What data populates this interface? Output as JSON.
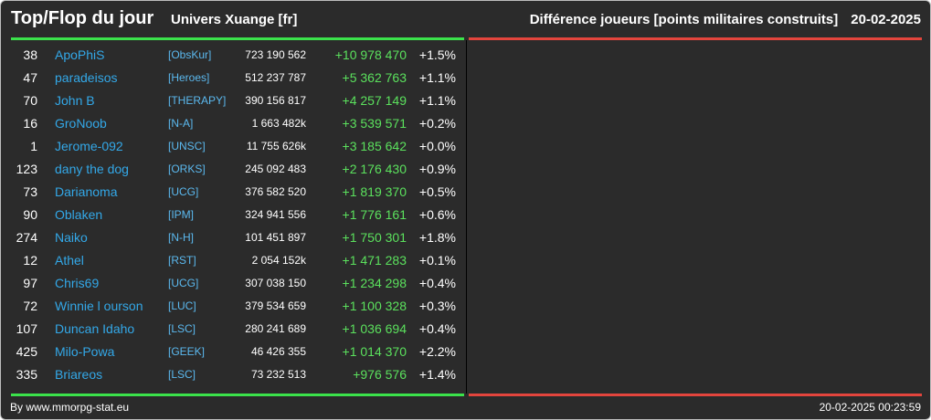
{
  "header": {
    "title": "Top/Flop du jour",
    "universe": "Univers Xuange [fr]",
    "subtitle": "Différence joueurs [points militaires construits]",
    "date": "20-02-2025"
  },
  "colors": {
    "background": "#2b2b2b",
    "top_line": "#3be24b",
    "flop_line": "#e3453d",
    "player_name": "#33a8e8",
    "alliance": "#5bb9ef",
    "positive_diff": "#5be15d"
  },
  "rows": [
    {
      "rank": "38",
      "name": "ApoPhiS",
      "alliance": "[ObsKur]",
      "points": "723 190 562",
      "diff": "+10 978 470",
      "pct": "+1.5%"
    },
    {
      "rank": "47",
      "name": "paradeisos",
      "alliance": "[Heroes]",
      "points": "512 237 787",
      "diff": "+5 362 763",
      "pct": "+1.1%"
    },
    {
      "rank": "70",
      "name": "John B",
      "alliance": "[THERAPY]",
      "points": "390 156 817",
      "diff": "+4 257 149",
      "pct": "+1.1%"
    },
    {
      "rank": "16",
      "name": "GroNoob",
      "alliance": "[N-A]",
      "points": "1 663 482k",
      "diff": "+3 539 571",
      "pct": "+0.2%"
    },
    {
      "rank": "1",
      "name": "Jerome-092",
      "alliance": "[UNSC]",
      "points": "11 755 626k",
      "diff": "+3 185 642",
      "pct": "+0.0%"
    },
    {
      "rank": "123",
      "name": "dany the dog",
      "alliance": "[ORKS]",
      "points": "245 092 483",
      "diff": "+2 176 430",
      "pct": "+0.9%"
    },
    {
      "rank": "73",
      "name": "Darianoma",
      "alliance": "[UCG]",
      "points": "376 582 520",
      "diff": "+1 819 370",
      "pct": "+0.5%"
    },
    {
      "rank": "90",
      "name": "Oblaken",
      "alliance": "[IPM]",
      "points": "324 941 556",
      "diff": "+1 776 161",
      "pct": "+0.6%"
    },
    {
      "rank": "274",
      "name": "Naiko",
      "alliance": "[N-H]",
      "points": "101 451 897",
      "diff": "+1 750 301",
      "pct": "+1.8%"
    },
    {
      "rank": "12",
      "name": "Athel",
      "alliance": "[RST]",
      "points": "2 054 152k",
      "diff": "+1 471 283",
      "pct": "+0.1%"
    },
    {
      "rank": "97",
      "name": "Chris69",
      "alliance": "[UCG]",
      "points": "307 038 150",
      "diff": "+1 234 298",
      "pct": "+0.4%"
    },
    {
      "rank": "72",
      "name": "Winnie l ourson",
      "alliance": "[LUC]",
      "points": "379 534 659",
      "diff": "+1 100 328",
      "pct": "+0.3%"
    },
    {
      "rank": "107",
      "name": "Duncan Idaho",
      "alliance": "[LSC]",
      "points": "280 241 689",
      "diff": "+1 036 694",
      "pct": "+0.4%"
    },
    {
      "rank": "425",
      "name": "Milo-Powa",
      "alliance": "[GEEK]",
      "points": "46 426 355",
      "diff": "+1 014 370",
      "pct": "+2.2%"
    },
    {
      "rank": "335",
      "name": "Briareos",
      "alliance": "[LSC]",
      "points": "73 232 513",
      "diff": "+976 576",
      "pct": "+1.4%"
    }
  ],
  "footer": {
    "credit": "By www.mmorpg-stat.eu",
    "timestamp": "20-02-2025 00:23:59"
  }
}
